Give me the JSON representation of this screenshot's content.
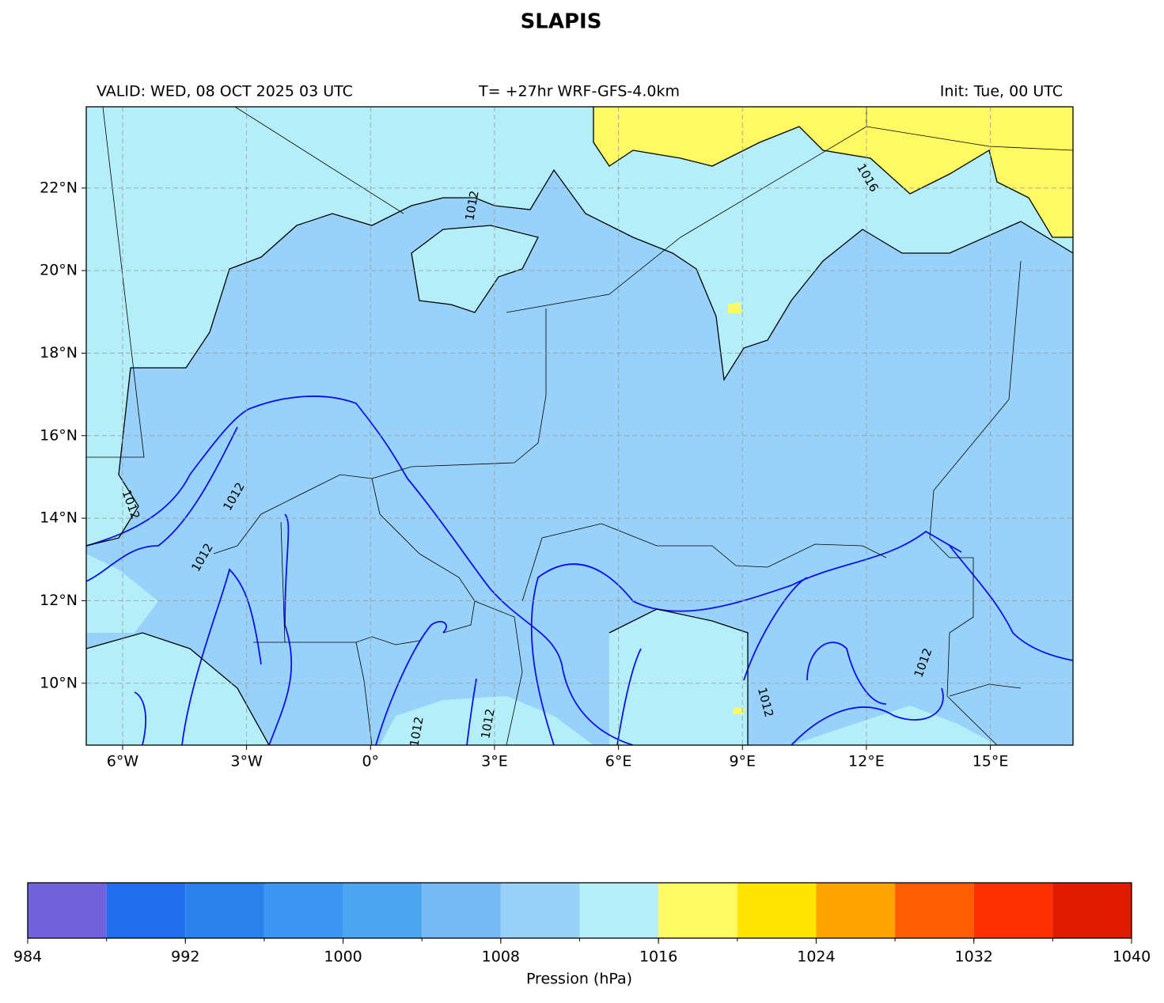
{
  "title": "SLAPIS",
  "header": {
    "valid": "VALID: WED, 08 OCT 2025 03 UTC",
    "run": "T= +27hr WRF-GFS-4.0km",
    "init": "Init: Tue, 00 UTC"
  },
  "map": {
    "xlim": [
      -6.88,
      17.0
    ],
    "ylim": [
      8.5,
      23.97
    ],
    "grid": true,
    "xticks": [
      {
        "value": -6,
        "label": "6°W"
      },
      {
        "value": -3,
        "label": "3°W"
      },
      {
        "value": 0,
        "label": "0°"
      },
      {
        "value": 3,
        "label": "3°E"
      },
      {
        "value": 6,
        "label": "6°E"
      },
      {
        "value": 9,
        "label": "9°E"
      },
      {
        "value": 12,
        "label": "12°E"
      },
      {
        "value": 15,
        "label": "15°E"
      }
    ],
    "yticks": [
      {
        "value": 10,
        "label": "10°N"
      },
      {
        "value": 12,
        "label": "12°N"
      },
      {
        "value": 14,
        "label": "14°N"
      },
      {
        "value": 16,
        "label": "16°N"
      },
      {
        "value": 18,
        "label": "18°N"
      },
      {
        "value": 20,
        "label": "20°N"
      },
      {
        "value": 22,
        "label": "22°N"
      }
    ],
    "contour_labels": [
      1012,
      1012,
      1012,
      1012,
      1016,
      1012,
      1012,
      1012,
      1012
    ]
  },
  "colorbar": {
    "levels": [
      984,
      988,
      992,
      996,
      1000,
      1004,
      1008,
      1012,
      1016,
      1020,
      1024,
      1028,
      1032,
      1036,
      1040
    ],
    "colors": [
      "#7161dd",
      "#206ded",
      "#2982ec",
      "#3c97f4",
      "#4ea6f0",
      "#76b9f7",
      "#98d1f9",
      "#b4eff9",
      "#fff963",
      "#ffe500",
      "#ffa200",
      "#ff5e00",
      "#ff3000",
      "#e01a00"
    ],
    "ticks": [
      984,
      992,
      1000,
      1008,
      1016,
      1024,
      1032,
      1040
    ],
    "label": "Pression (hPa)"
  }
}
